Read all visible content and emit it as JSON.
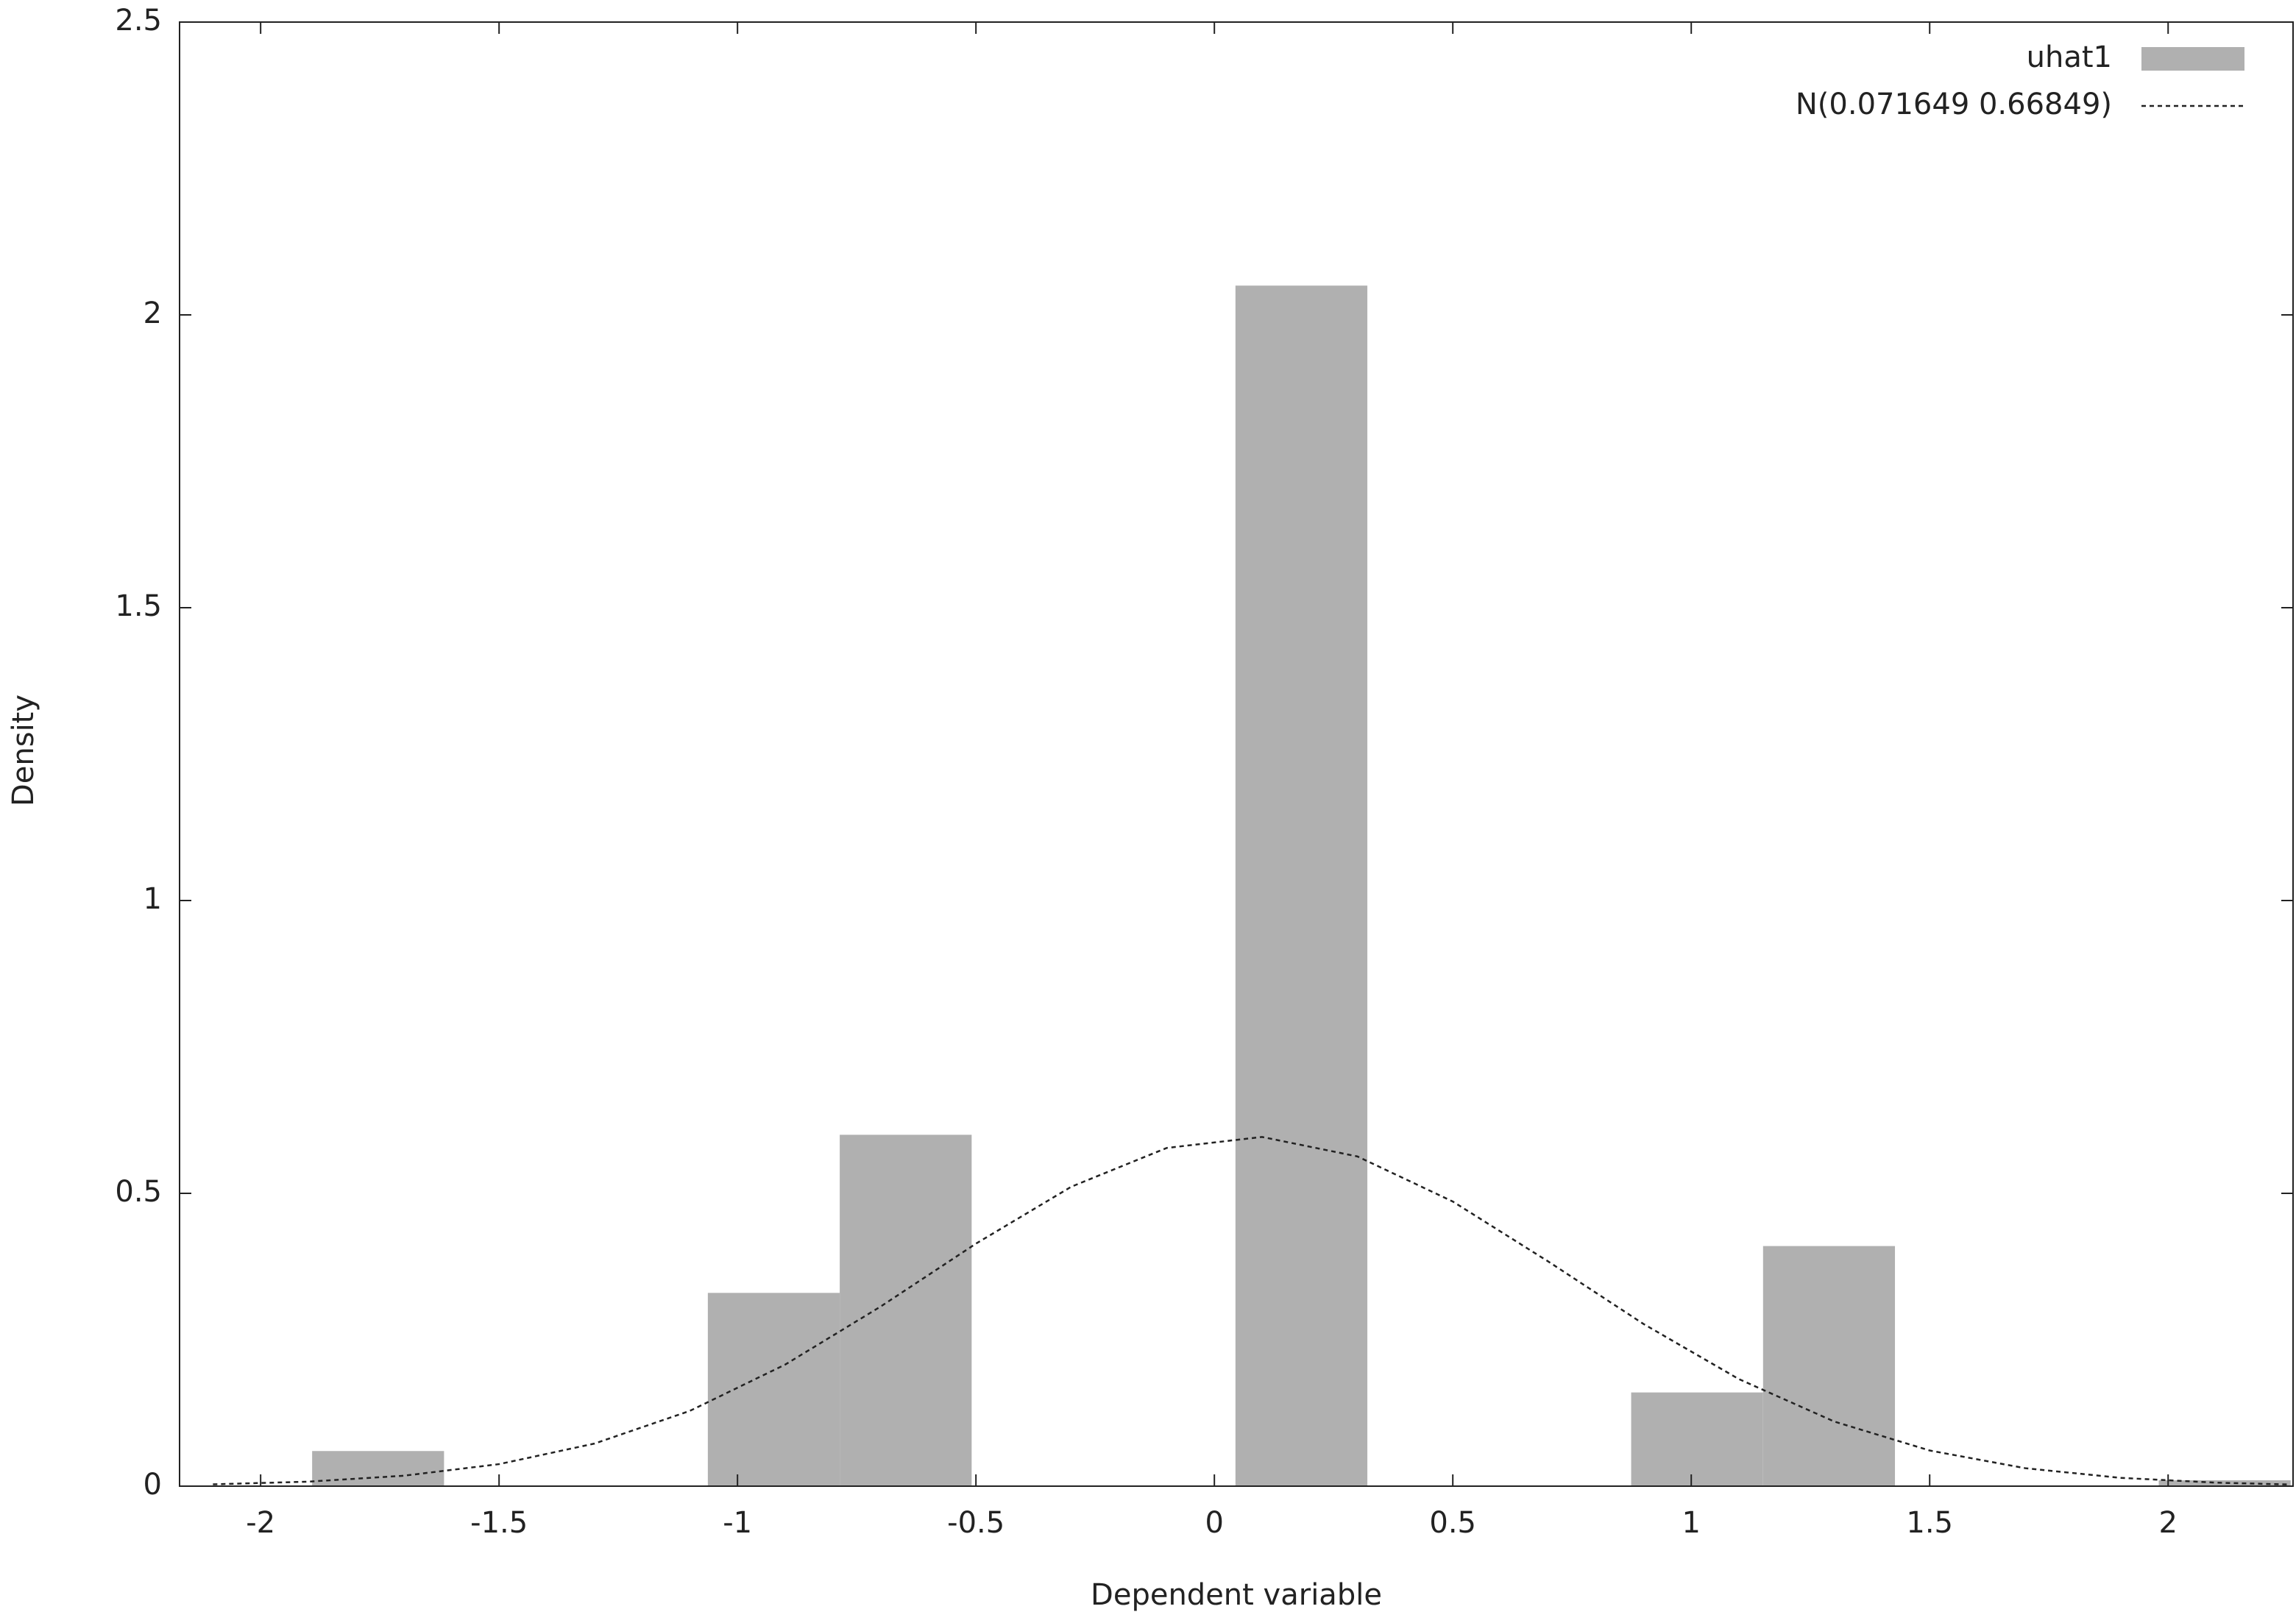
{
  "chart_data": {
    "type": "histogram",
    "xlabel": "Dependent variable",
    "ylabel": "Density",
    "bins": [
      -1.892,
      -1.6154,
      -1.3388,
      -1.0622,
      -0.7856,
      -0.509,
      -0.2324,
      0.0442,
      0.3208,
      0.5974,
      0.874,
      1.1506,
      1.4272,
      1.7038,
      1.9804,
      2.257
    ],
    "series": [
      {
        "name": "uhat1",
        "color": "#b0b0b0",
        "values": [
          0.06,
          0,
          0,
          0.33,
          0.6,
          0,
          0,
          2.05,
          0,
          0,
          0.16,
          0.41,
          0,
          0,
          0.01
        ]
      },
      {
        "name": "N(0.071649 0.66849)",
        "color": "#222222",
        "line_style": "dashed",
        "x": [
          -2.1,
          -1.9,
          -1.7,
          -1.5,
          -1.3,
          -1.1,
          -0.9,
          -0.7,
          -0.5,
          -0.3,
          -0.1,
          0.1,
          0.3,
          0.5,
          0.7,
          0.9,
          1.1,
          1.3,
          1.5,
          1.7,
          1.9,
          2.1,
          2.25
        ],
        "values": [
          0.0031,
          0.0077,
          0.0178,
          0.0376,
          0.0727,
          0.1285,
          0.2076,
          0.3066,
          0.4141,
          0.5113,
          0.5775,
          0.5963,
          0.563,
          0.486,
          0.3837,
          0.2769,
          0.1828,
          0.1103,
          0.0609,
          0.0307,
          0.0142,
          0.006,
          0.0029
        ]
      }
    ],
    "xlim": [
      -2.17,
      2.262
    ],
    "ylim": [
      0,
      2.5
    ],
    "xticks": [
      -2,
      -1.5,
      -1,
      -0.5,
      0,
      0.5,
      1,
      1.5,
      2
    ],
    "yticks": [
      0,
      0.5,
      1,
      1.5,
      2,
      2.5
    ],
    "legend": "top-right"
  }
}
